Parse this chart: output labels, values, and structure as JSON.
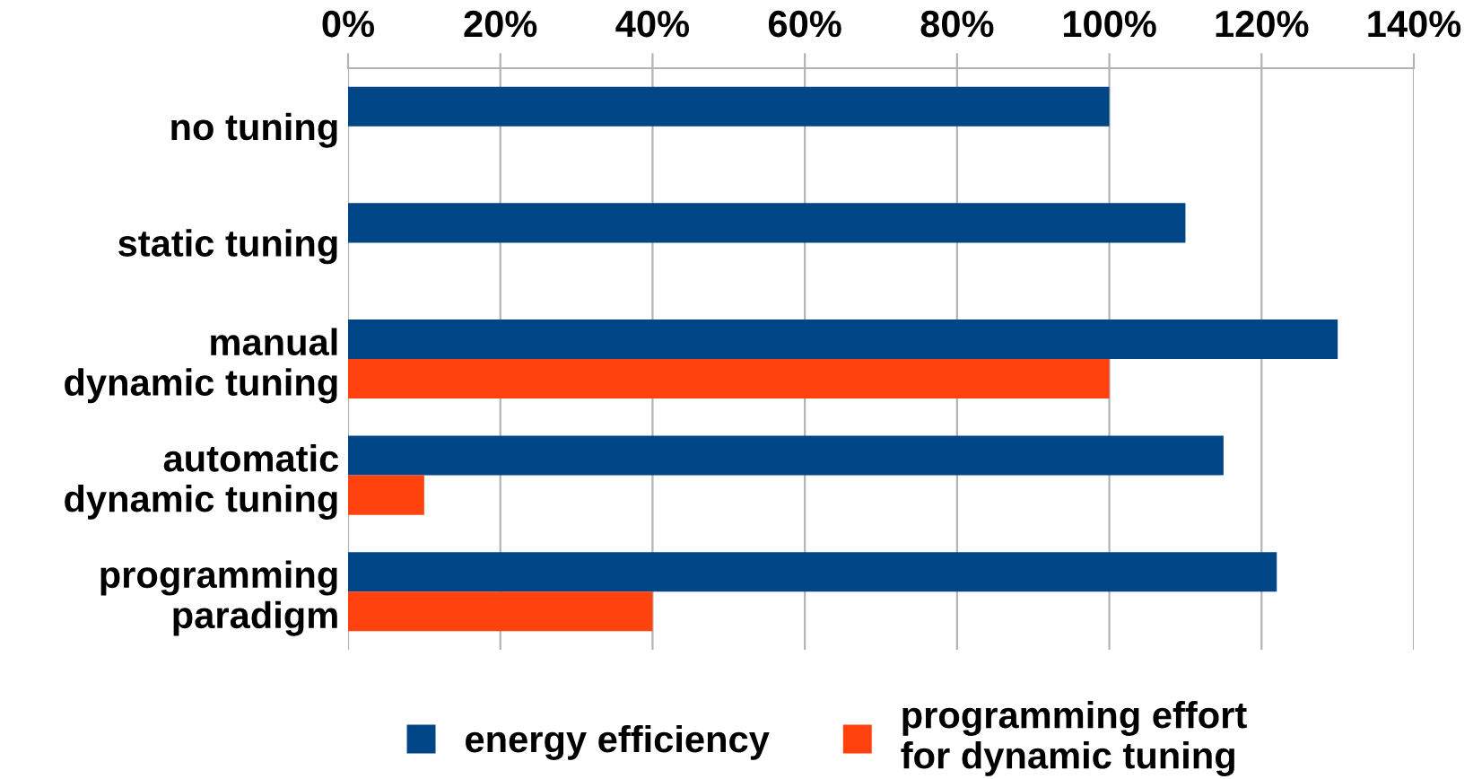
{
  "chart_data": {
    "type": "bar",
    "orientation": "horizontal",
    "categories": [
      "no tuning",
      "static tuning",
      "manual\ndynamic tuning",
      "automatic\ndynamic tuning",
      "programming\nparadigm"
    ],
    "series": [
      {
        "name": "energy efficiency",
        "color": "#004586",
        "values": [
          100,
          110,
          130,
          115,
          122
        ]
      },
      {
        "name": "programming effort\nfor dynamic tuning",
        "color": "#ff420e",
        "values": [
          null,
          null,
          100,
          10,
          40
        ]
      }
    ],
    "xlim": [
      0,
      140
    ],
    "xticks": [
      {
        "value": 0,
        "label": "0%"
      },
      {
        "value": 20,
        "label": "20%"
      },
      {
        "value": 40,
        "label": "40%"
      },
      {
        "value": 60,
        "label": "60%"
      },
      {
        "value": 80,
        "label": "80%"
      },
      {
        "value": 100,
        "label": "100%"
      },
      {
        "value": 120,
        "label": "120%"
      },
      {
        "value": 140,
        "label": "140%"
      }
    ],
    "grid": "x",
    "legend": "bottom"
  }
}
